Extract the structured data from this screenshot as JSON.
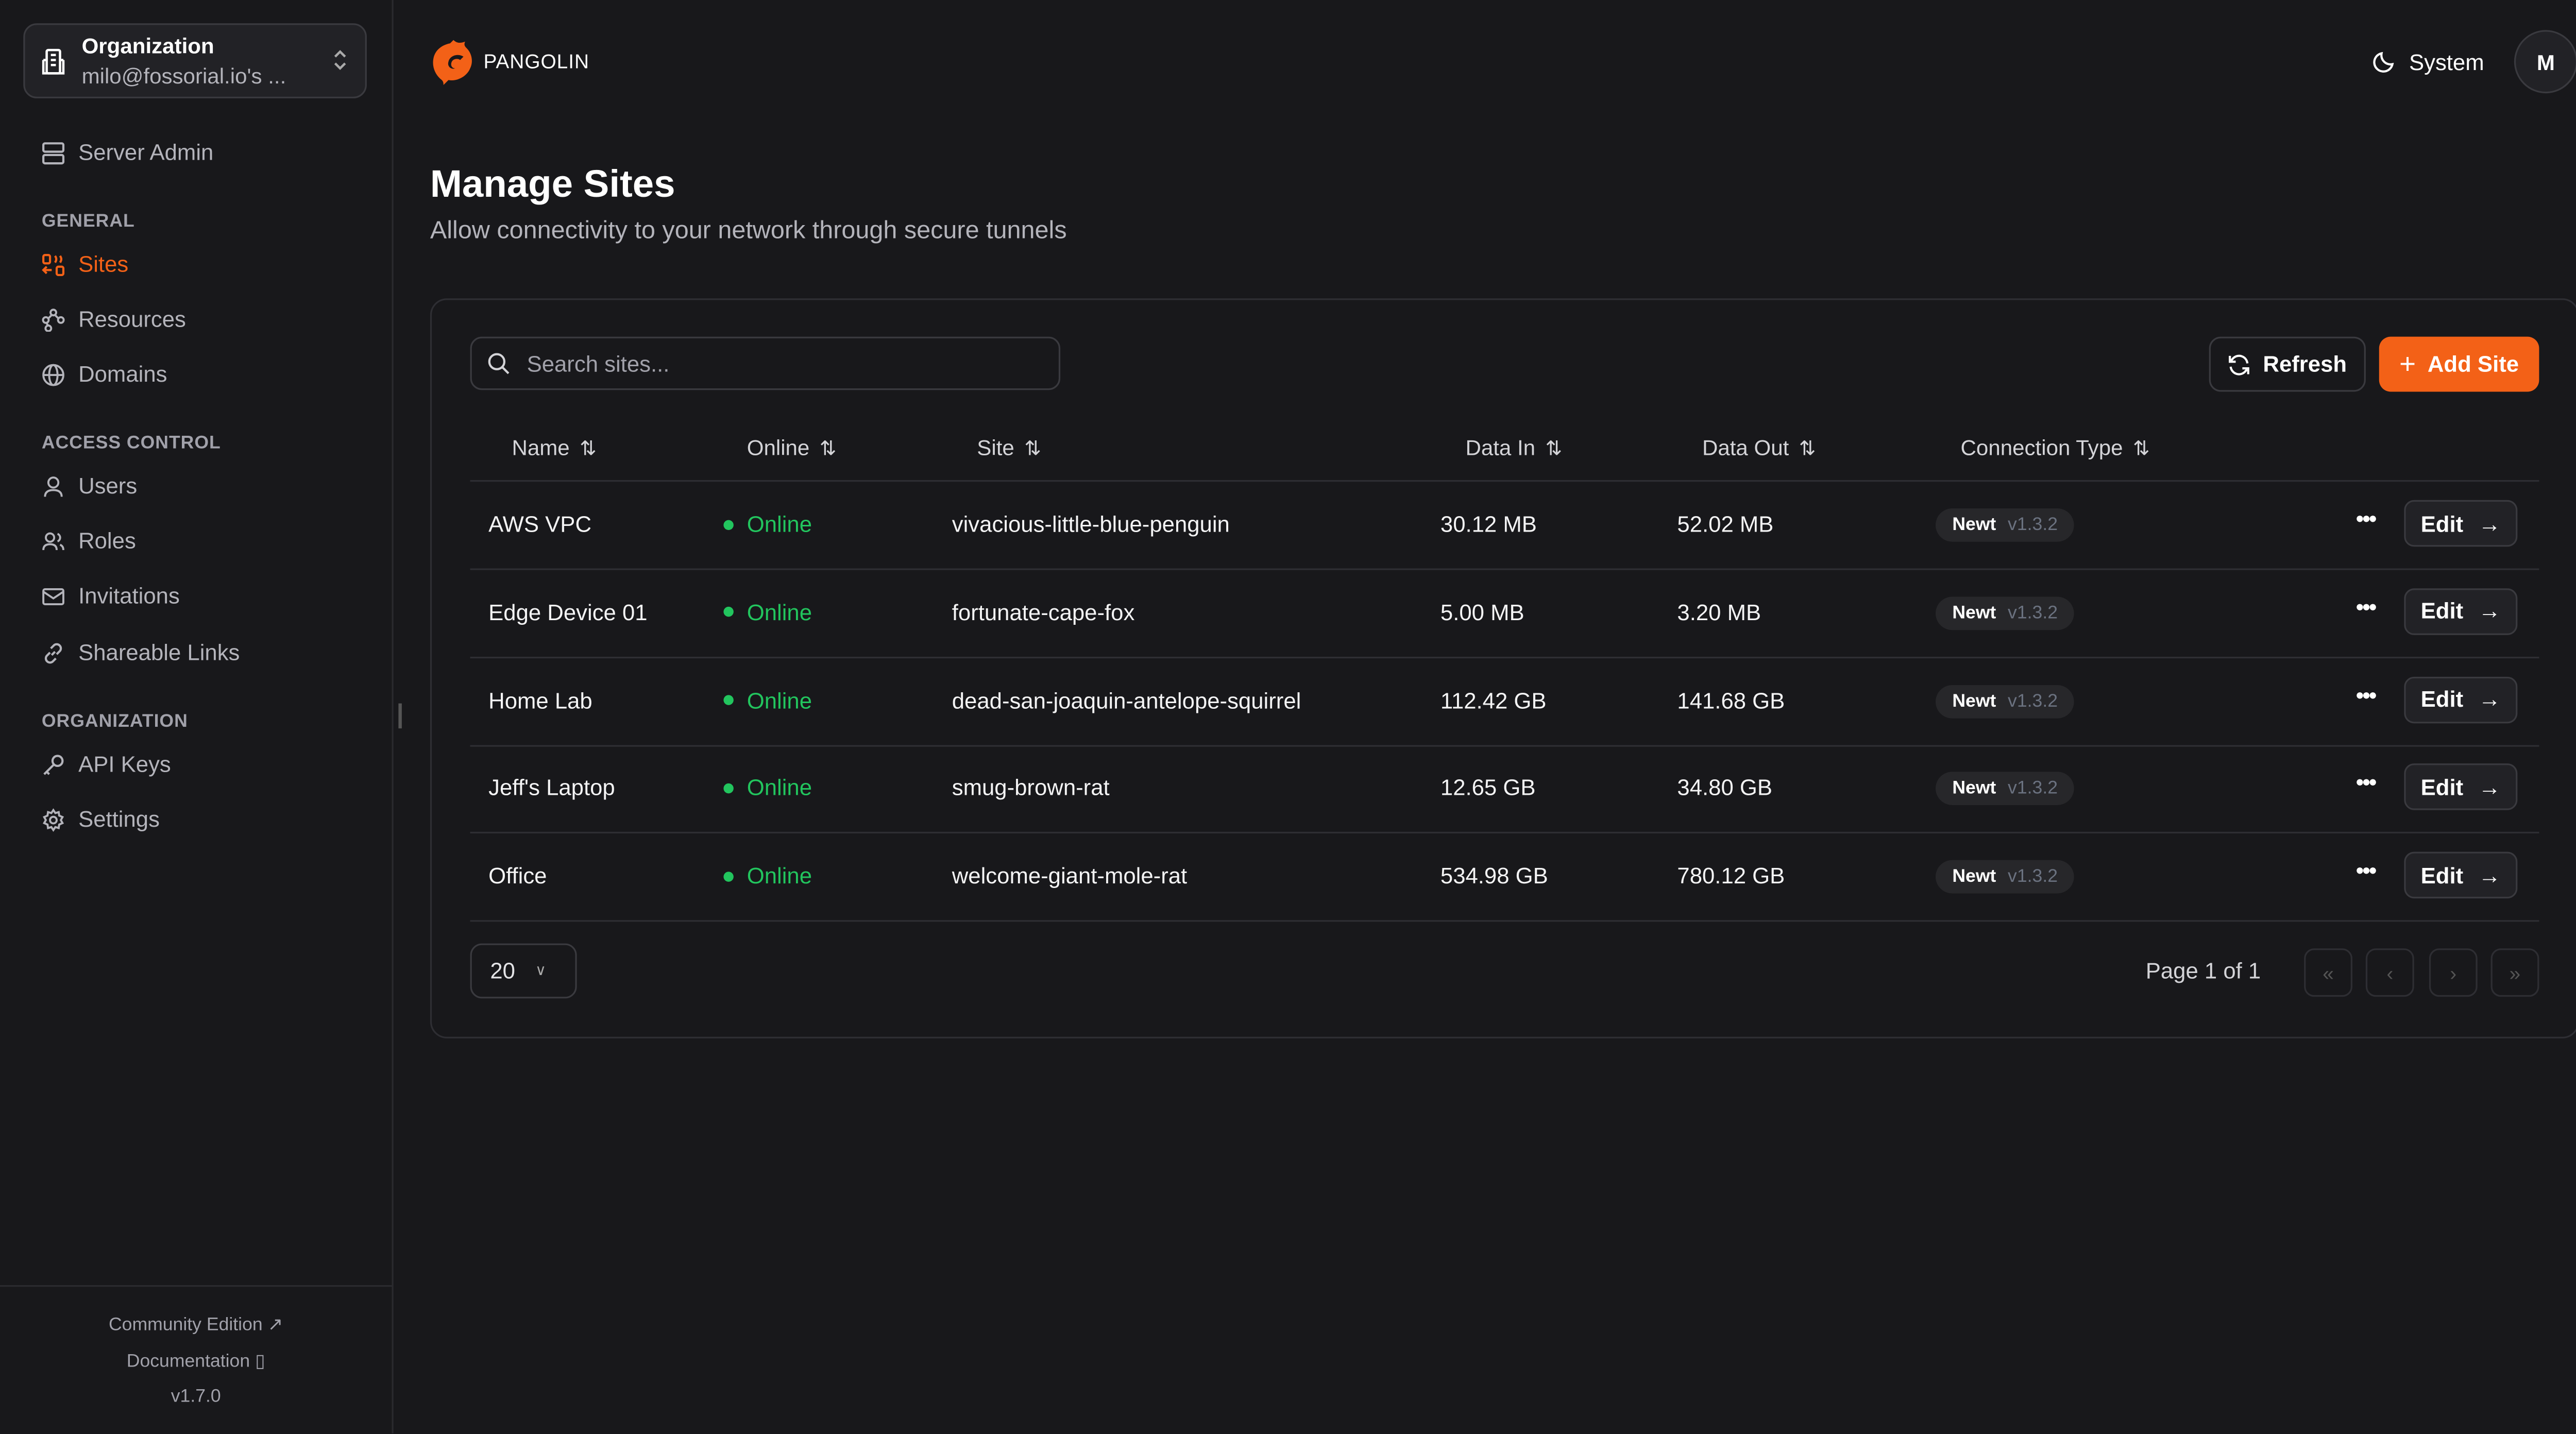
{
  "sidebar": {
    "org": {
      "label": "Organization",
      "value": "milo@fossorial.io's ..."
    },
    "server_admin": "Server Admin",
    "sections": [
      {
        "title": "GENERAL",
        "items": [
          {
            "label": "Sites",
            "icon": "sites-icon",
            "active": true
          },
          {
            "label": "Resources",
            "icon": "resources-icon"
          },
          {
            "label": "Domains",
            "icon": "globe-icon"
          }
        ]
      },
      {
        "title": "ACCESS CONTROL",
        "items": [
          {
            "label": "Users",
            "icon": "user-icon"
          },
          {
            "label": "Roles",
            "icon": "users-icon"
          },
          {
            "label": "Invitations",
            "icon": "mail-icon"
          },
          {
            "label": "Shareable Links",
            "icon": "link-icon"
          }
        ]
      },
      {
        "title": "ORGANIZATION",
        "items": [
          {
            "label": "API Keys",
            "icon": "key-icon"
          },
          {
            "label": "Settings",
            "icon": "gear-icon"
          }
        ]
      }
    ],
    "footer": {
      "community": "Community Edition",
      "docs": "Documentation",
      "version": "v1.7.0"
    }
  },
  "header": {
    "brand": "PANGOLIN",
    "theme": "System",
    "avatar": "M"
  },
  "page": {
    "title": "Manage Sites",
    "subtitle": "Allow connectivity to your network through secure tunnels"
  },
  "toolbar": {
    "search_placeholder": "Search sites...",
    "refresh": "Refresh",
    "add": "Add Site"
  },
  "table": {
    "columns": [
      "Name",
      "Online",
      "Site",
      "Data In",
      "Data Out",
      "Connection Type"
    ],
    "rows": [
      {
        "name": "AWS VPC",
        "online": "Online",
        "site": "vivacious-little-blue-penguin",
        "in": "30.12 MB",
        "out": "52.02 MB",
        "type": "Newt",
        "ver": "v1.3.2",
        "edit": "Edit"
      },
      {
        "name": "Edge Device 01",
        "online": "Online",
        "site": "fortunate-cape-fox",
        "in": "5.00 MB",
        "out": "3.20 MB",
        "type": "Newt",
        "ver": "v1.3.2",
        "edit": "Edit"
      },
      {
        "name": "Home Lab",
        "online": "Online",
        "site": "dead-san-joaquin-antelope-squirrel",
        "in": "112.42 GB",
        "out": "141.68 GB",
        "type": "Newt",
        "ver": "v1.3.2",
        "edit": "Edit"
      },
      {
        "name": "Jeff's Laptop",
        "online": "Online",
        "site": "smug-brown-rat",
        "in": "12.65 GB",
        "out": "34.80 GB",
        "type": "Newt",
        "ver": "v1.3.2",
        "edit": "Edit"
      },
      {
        "name": "Office",
        "online": "Online",
        "site": "welcome-giant-mole-rat",
        "in": "534.98 GB",
        "out": "780.12 GB",
        "type": "Newt",
        "ver": "v1.3.2",
        "edit": "Edit"
      }
    ]
  },
  "pagination": {
    "page_size": "20",
    "info": "Page 1 of 1"
  },
  "colors": {
    "accent": "#f36117",
    "online": "#22c55e",
    "background": "#18181b"
  }
}
